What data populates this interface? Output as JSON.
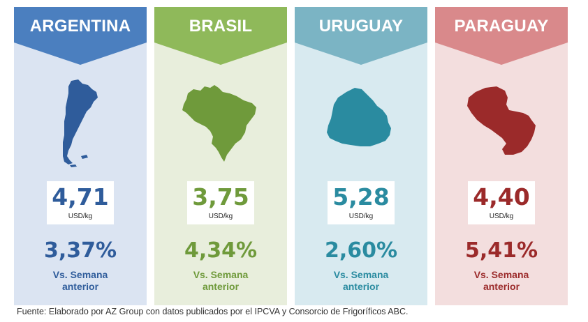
{
  "colors": {
    "argentina": {
      "accent": "#2f5c9b",
      "banner": "#4b7fbf",
      "bg": "#dbe4f2"
    },
    "brasil": {
      "accent": "#6f9a3b",
      "banner": "#8fb95a",
      "bg": "#e8eedc"
    },
    "uruguay": {
      "accent": "#2a8ba0",
      "banner": "#7bb4c4",
      "bg": "#d8eaf0"
    },
    "paraguay": {
      "accent": "#9b2a2a",
      "banner": "#d9898b",
      "bg": "#f3dede"
    }
  },
  "cards": [
    {
      "country": "ARGENTINA",
      "price": "4,71",
      "unit": "USD/kg",
      "change": "3,37%",
      "vs_line1": "Vs. Semana",
      "vs_line2": "anterior",
      "map_icon": "argentina-map-icon"
    },
    {
      "country": "BRASIL",
      "price": "3,75",
      "unit": "USD/kg",
      "change": "4,34%",
      "vs_line1": "Vs. Semana",
      "vs_line2": "anterior",
      "map_icon": "brasil-map-icon"
    },
    {
      "country": "URUGUAY",
      "price": "5,28",
      "unit": "USD/kg",
      "change": "2,60%",
      "vs_line1": "Vs. Semana",
      "vs_line2": "anterior",
      "map_icon": "uruguay-map-icon"
    },
    {
      "country": "PARAGUAY",
      "price": "4,40",
      "unit": "USD/kg",
      "change": "5,41%",
      "vs_line1": "Vs. Semana",
      "vs_line2": "anterior",
      "map_icon": "paraguay-map-icon"
    }
  ],
  "source": "Fuente: Elaborado por AZ Group con datos publicados por el IPCVA y Consorcio de Frigoríficos ABC."
}
